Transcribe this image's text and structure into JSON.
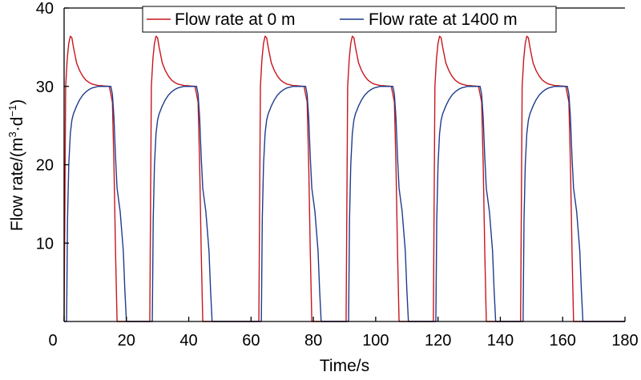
{
  "chart_data": {
    "type": "line",
    "title": "",
    "xlabel": "Time/s",
    "ylabel_text": "Flow rate/(m",
    "ylabel_sup1": "3",
    "ylabel_mid": "·d",
    "ylabel_sup2": "−1",
    "ylabel_close": ")",
    "xlim": [
      0,
      180
    ],
    "ylim": [
      0,
      40
    ],
    "xticks": [
      0,
      20,
      40,
      60,
      80,
      100,
      120,
      140,
      160,
      180
    ],
    "yticks": [
      10,
      20,
      30,
      40
    ],
    "legend_position": "top-right",
    "cycle_starts": [
      0,
      27.5,
      62.5,
      90.5,
      118.5,
      146.5
    ],
    "series": [
      {
        "name": "Flow rate at 0 m",
        "color": "#c8161d",
        "cycle_shape_x": [
          0,
          0.2,
          0.5,
          1.0,
          1.5,
          2.0,
          2.5,
          3.0,
          3.5,
          4.0,
          5.0,
          6.0,
          7.0,
          8.0,
          9.0,
          10.0,
          11.0,
          12.0,
          13.0,
          14.5,
          15.5,
          16.0,
          16.5,
          17.0
        ],
        "cycle_shape_y": [
          0,
          12,
          30,
          33.5,
          35.5,
          36.4,
          36.2,
          35.0,
          34.0,
          33.0,
          32.0,
          31.3,
          30.8,
          30.5,
          30.3,
          30.2,
          30.1,
          30.1,
          30.05,
          30.0,
          28.0,
          20.0,
          9.0,
          0
        ]
      },
      {
        "name": "Flow rate at 1400 m",
        "color": "#1f3c8c",
        "cycle_shape_x": [
          0.8,
          1.1,
          1.5,
          2.0,
          2.5,
          3.0,
          4.0,
          5.0,
          6.0,
          7.0,
          8.0,
          9.0,
          10.0,
          11.0,
          12.0,
          13.0,
          14.0,
          15.0,
          15.5,
          16.0,
          16.5,
          17.0,
          18.0,
          19.0,
          19.5,
          20.0
        ],
        "cycle_shape_y": [
          0,
          13,
          20,
          24,
          25.7,
          26.5,
          27.5,
          28.3,
          28.9,
          29.3,
          29.6,
          29.8,
          29.9,
          30.0,
          30.0,
          30.0,
          30.0,
          30.0,
          29.0,
          26.0,
          21.0,
          17.0,
          14.0,
          9.0,
          4.0,
          0
        ]
      }
    ]
  }
}
